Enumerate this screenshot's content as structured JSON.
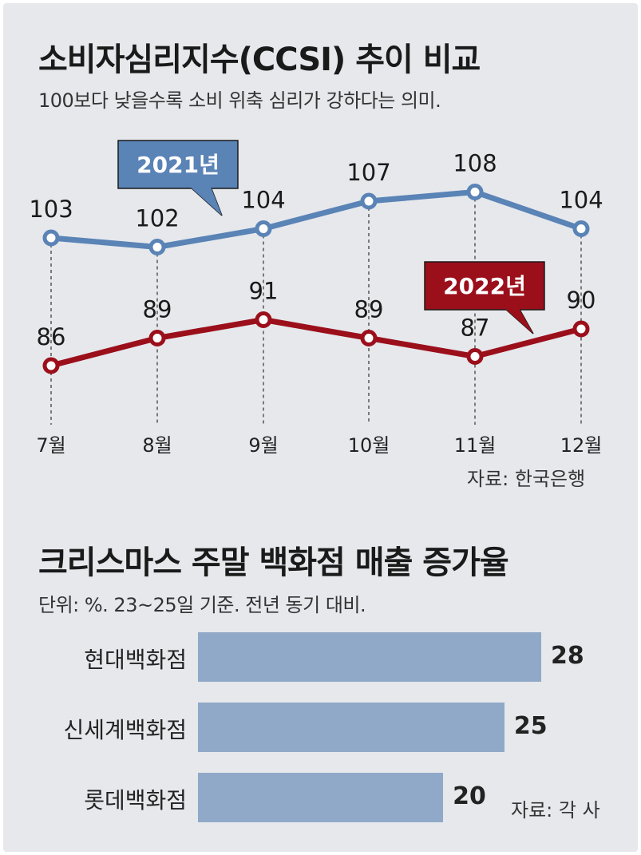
{
  "line_chart": {
    "title": "소비자심리지수(CCSI) 추이 비교",
    "subtitle": "100보다 낮을수록 소비 위축 심리가 강하다는 의미.",
    "source": "자료: 한국은행",
    "colors": {
      "series_2021": "#5a83b6",
      "series_2022": "#9b0f1b"
    }
  },
  "bar_chart": {
    "title": "크리스마스 주말 백화점 매출 증가율",
    "subtitle": "단위: %. 23~25일 기준. 전년 동기 대비.",
    "source": "자료: 각 사",
    "color": "#91a9c8"
  },
  "chart_data": [
    {
      "type": "line",
      "title": "소비자심리지수(CCSI) 추이 비교",
      "categories": [
        "7월",
        "8월",
        "9월",
        "10월",
        "11월",
        "12월"
      ],
      "series": [
        {
          "name": "2021년",
          "values": [
            103,
            102,
            104,
            107,
            108,
            104
          ]
        },
        {
          "name": "2022년",
          "values": [
            86,
            89,
            91,
            89,
            87,
            90
          ]
        }
      ],
      "grid": false
    },
    {
      "type": "bar",
      "orientation": "horizontal",
      "title": "크리스마스 주말 백화점 매출 증가율",
      "categories": [
        "현대백화점",
        "신세계백화점",
        "롯데백화점"
      ],
      "values": [
        28,
        25,
        20
      ],
      "xlim": [
        0,
        28
      ]
    }
  ]
}
